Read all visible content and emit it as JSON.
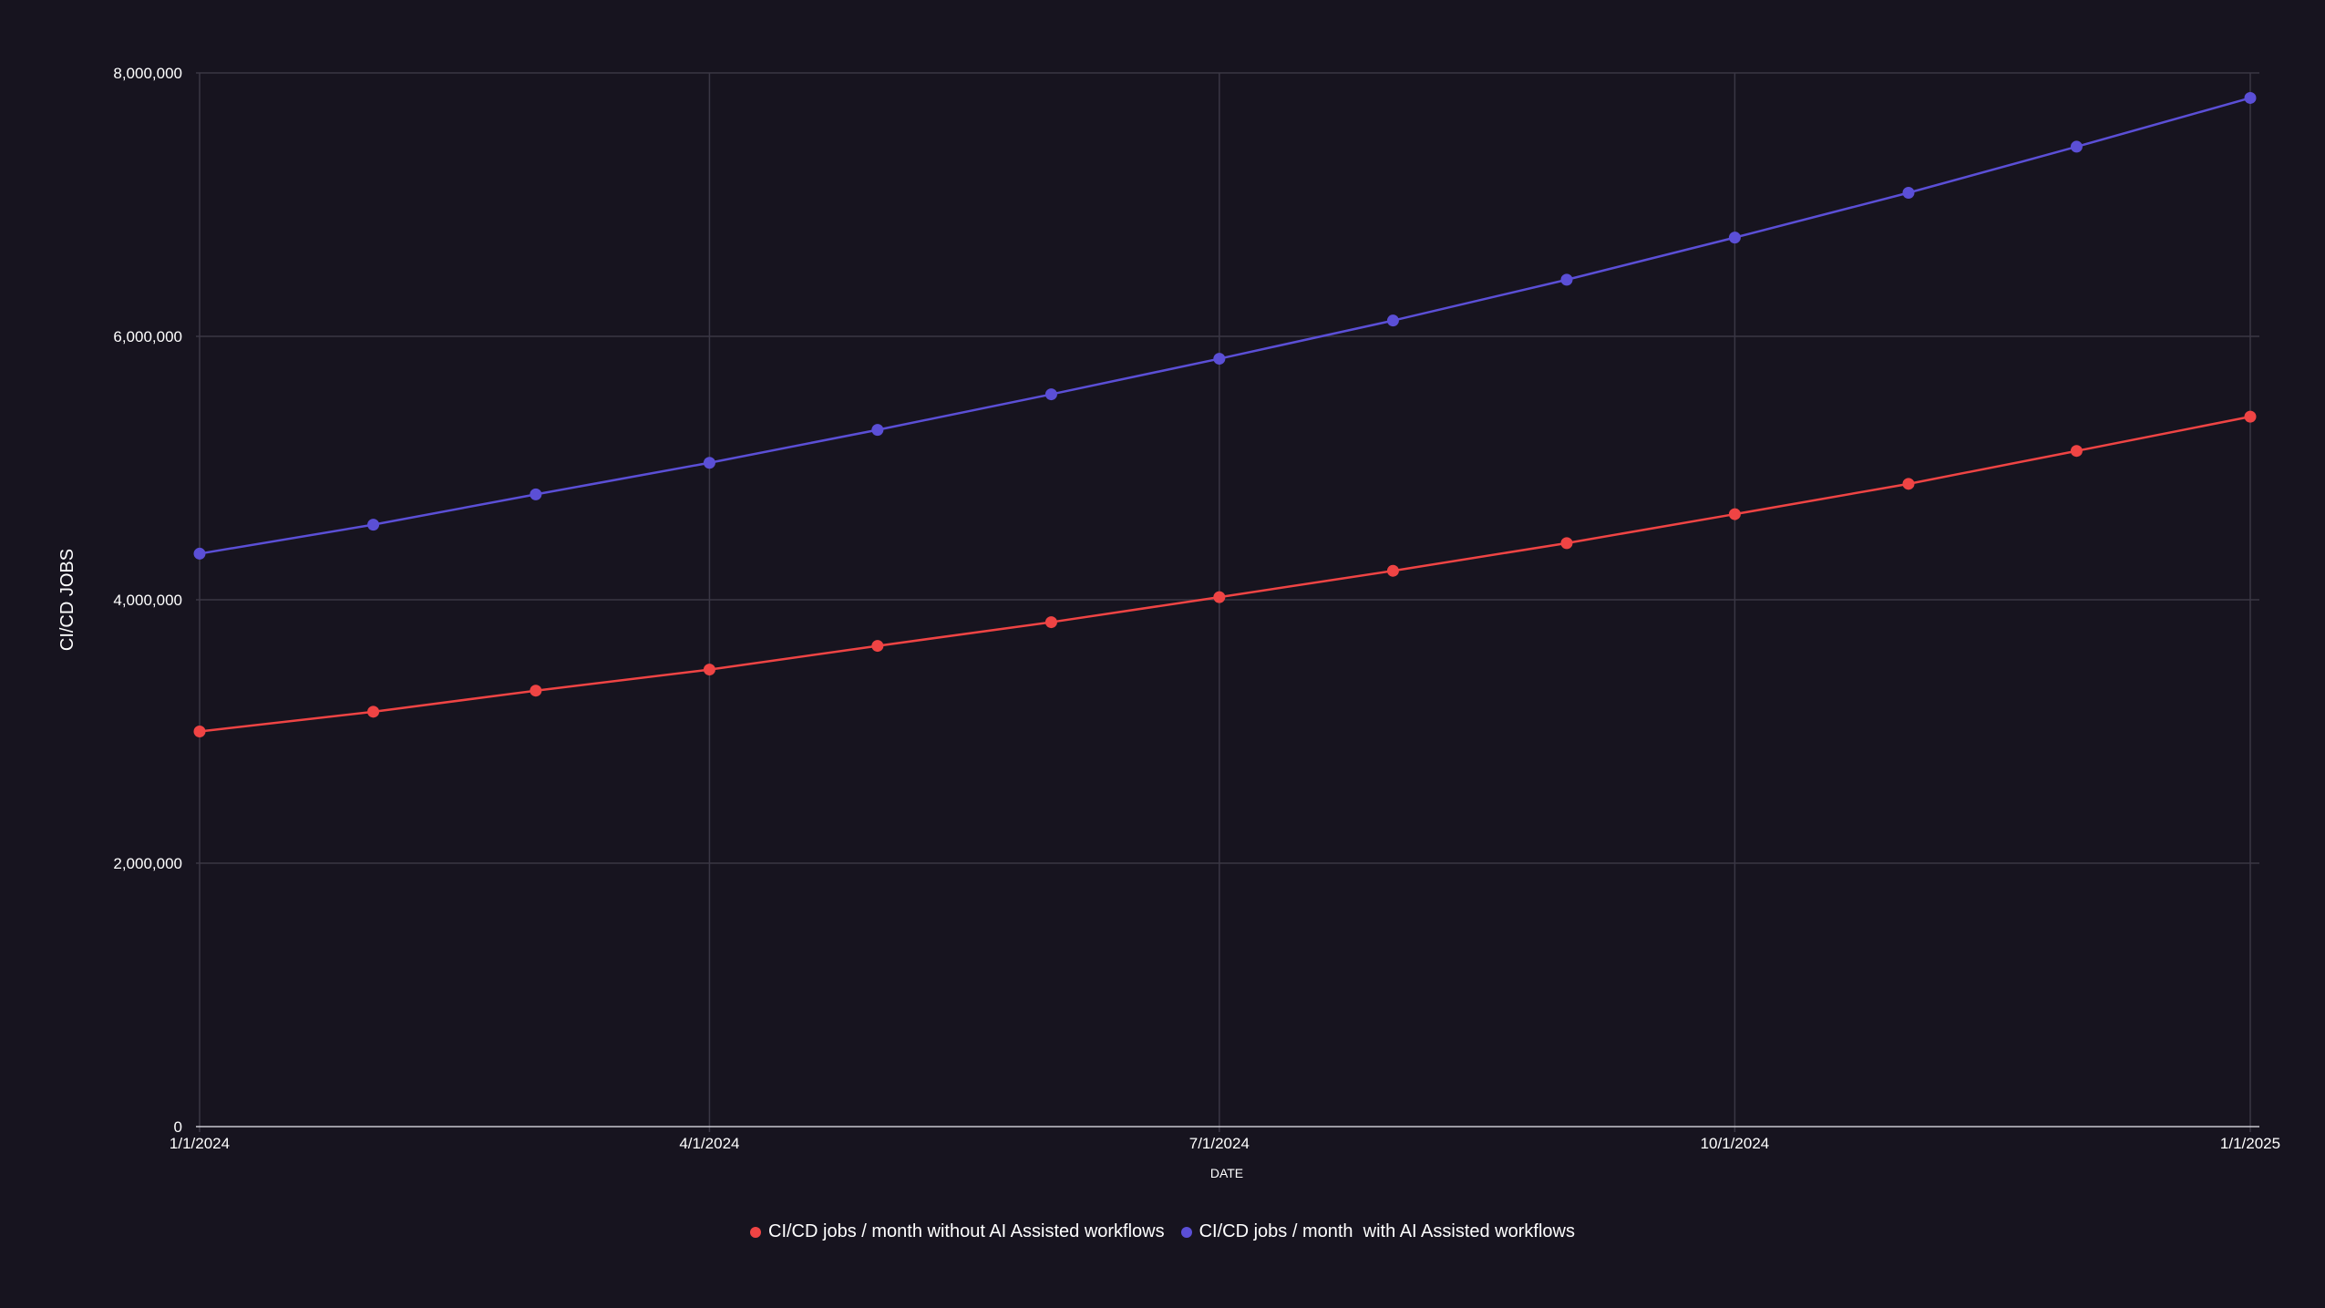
{
  "chart_data": {
    "type": "line",
    "xlabel": "DATE",
    "ylabel": "CI/CD JOBS",
    "ylim": [
      0,
      8000000
    ],
    "yticks": [
      0,
      2000000,
      4000000,
      6000000,
      8000000
    ],
    "ytick_labels": [
      "0",
      "2,000,000",
      "4,000,000",
      "6,000,000",
      "8,000,000"
    ],
    "x": [
      "1/1/2024",
      "2/1/2024",
      "3/1/2024",
      "4/1/2024",
      "5/1/2024",
      "6/1/2024",
      "7/1/2024",
      "8/1/2024",
      "9/1/2024",
      "10/1/2024",
      "11/1/2024",
      "12/1/2024",
      "1/1/2025"
    ],
    "xticks": [
      "1/1/2024",
      "4/1/2024",
      "7/1/2024",
      "10/1/2024",
      "1/1/2025"
    ],
    "grid": true,
    "legend_position": "bottom",
    "series": [
      {
        "name": "CI/CD jobs / month without AI Assisted workflows",
        "color": "#ef4444",
        "values": [
          3000000,
          3150000,
          3310000,
          3470000,
          3650000,
          3830000,
          4020000,
          4220000,
          4430000,
          4650000,
          4880000,
          5130000,
          5390000
        ]
      },
      {
        "name": "CI/CD jobs / month  with AI Assisted workflows",
        "color": "#5b4fd6",
        "values": [
          4350000,
          4570000,
          4800000,
          5040000,
          5290000,
          5560000,
          5830000,
          6120000,
          6430000,
          6750000,
          7090000,
          7440000,
          7810000
        ]
      }
    ]
  }
}
